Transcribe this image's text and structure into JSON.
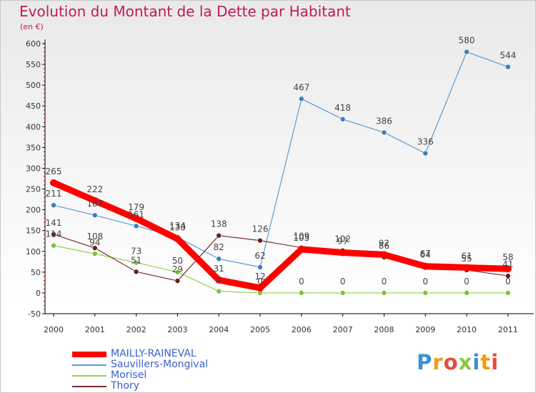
{
  "chart_data": {
    "type": "line",
    "title": "Evolution du Montant de la Dette par Habitant",
    "subtitle": "(en €)",
    "x": [
      "2000",
      "2001",
      "2002",
      "2003",
      "2004",
      "2005",
      "2006",
      "2007",
      "2008",
      "2009",
      "2010",
      "2011"
    ],
    "ylim": [
      -50,
      600
    ],
    "yticks": [
      -50,
      0,
      50,
      100,
      150,
      200,
      250,
      300,
      350,
      400,
      450,
      500,
      550,
      600
    ],
    "grid": false,
    "legend_position": "bottom-left",
    "series": [
      {
        "name": "MAILLY-RAINEVAL",
        "color": "#ff0000",
        "values": [
          265,
          222,
          179,
          130,
          31,
          12,
          105,
          97,
          92,
          64,
          61,
          58
        ]
      },
      {
        "name": "Sauvillers-Mongival",
        "color": "#5b9bd5",
        "values": [
          211,
          187,
          161,
          134,
          82,
          62,
          467,
          418,
          386,
          336,
          580,
          544
        ]
      },
      {
        "name": "Morisel",
        "color": "#92d050",
        "values": [
          114,
          94,
          73,
          50,
          4,
          0,
          0,
          0,
          0,
          0,
          0,
          0
        ]
      },
      {
        "name": "Thory",
        "color": "#7b2c2c",
        "values": [
          141,
          108,
          51,
          29,
          138,
          126,
          109,
          102,
          86,
          67,
          55,
          41
        ]
      }
    ]
  },
  "logo": {
    "letters": [
      "P",
      "r",
      "o",
      "x",
      "i",
      "t",
      "i"
    ],
    "text": "Proxiti"
  }
}
